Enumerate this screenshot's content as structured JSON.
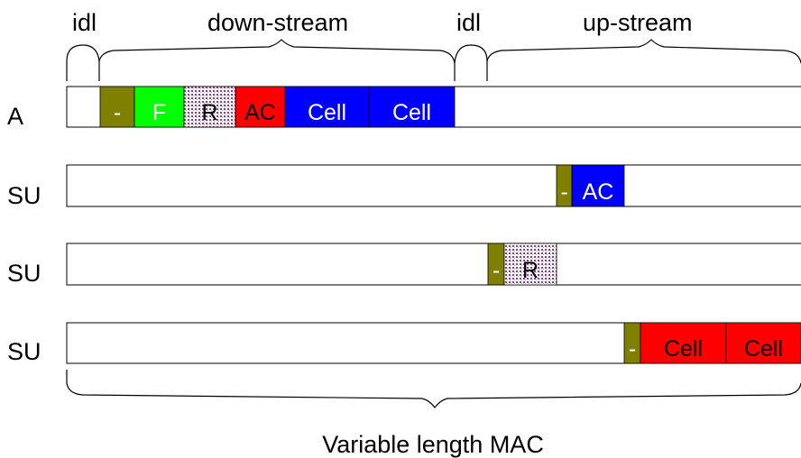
{
  "top_labels": {
    "idl_1": "idl",
    "down_stream": "down-stream",
    "idl_2": "idl",
    "up_stream": "up-stream"
  },
  "bottom_label": "Variable length MAC",
  "colors": {
    "olive": "#808000",
    "green": "#00ff00",
    "red": "#ff0000",
    "blue": "#0000ff",
    "dotted_purple": "#8b3f8b"
  },
  "rows": [
    {
      "label": "A",
      "segments": [
        {
          "text": "-",
          "color": "olive",
          "text_color": "#ffffff"
        },
        {
          "text": "F",
          "color": "green",
          "text_color": "#ffffff"
        },
        {
          "text": "R",
          "color": "dotted",
          "text_color": "#000000"
        },
        {
          "text": "AC",
          "color": "red",
          "text_color": "#000000"
        },
        {
          "text": "Cell",
          "color": "blue",
          "text_color": "#ffffff"
        },
        {
          "text": "Cell",
          "color": "blue",
          "text_color": "#ffffff"
        }
      ]
    },
    {
      "label": "SU",
      "segments": [
        {
          "text": "-",
          "color": "olive",
          "text_color": "#ffffff"
        },
        {
          "text": "AC",
          "color": "blue",
          "text_color": "#ffffff"
        }
      ]
    },
    {
      "label": "SU",
      "segments": [
        {
          "text": "-",
          "color": "olive",
          "text_color": "#ffffff"
        },
        {
          "text": "R",
          "color": "dotted",
          "text_color": "#000000"
        }
      ]
    },
    {
      "label": "SU",
      "segments": [
        {
          "text": "-",
          "color": "olive",
          "text_color": "#ffffff"
        },
        {
          "text": "Cell",
          "color": "red",
          "text_color": "#000000"
        },
        {
          "text": "Cell",
          "color": "red",
          "text_color": "#000000"
        }
      ]
    }
  ]
}
